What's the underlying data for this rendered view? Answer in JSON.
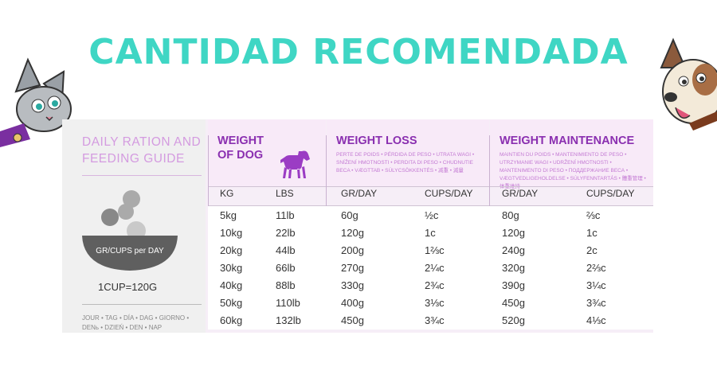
{
  "banner": {
    "title": "CANTIDAD RECOMENDADA"
  },
  "guide": {
    "title_line1": "DAILY RATION AND",
    "title_line2": "FEEDING GUIDE",
    "bowl_label": "GR/CUPS per DAY",
    "cup_equivalence": "1CUP=120G",
    "languages": "JOUR • TAG • DÍA • DAG • GIORNO • DENь • DZIEŃ • DEN • NAP"
  },
  "headers": {
    "weight": {
      "line1": "WEIGHT",
      "line2": "OF DOG"
    },
    "loss": {
      "title": "WEIGHT LOSS",
      "subtitle": "PERTE DE POIDS • PÉRDIDA DE PESO • UTRATA WAGI • SNÍŽENÍ HMOTNOSTI • PERDITA DI PESO • CHUDNUTIE BECA • VÆGTTAB • SÚLYCSÖKKENTÉS • 减重 • 減量"
    },
    "maintenance": {
      "title": "WEIGHT MAINTENANCE",
      "subtitle": "MAINTIEN DU POIDS • MANTENIMIENTO DE PESO • UTRZYMANIE WAGI • UDRŽENÍ HMOTNOSTI • MANTENIMENTO DI PESO • ПОДДЕРЖАНИЕ ВЕСА • VÆGTVEDLIGEHOLDELSE • SÚLYFENNTARTÁS • 體重管理 • 体重維持"
    }
  },
  "columns": {
    "kg": "KG",
    "lbs": "LBS",
    "loss_gr": "GR/DAY",
    "loss_cups": "CUPS/DAY",
    "maint_gr": "GR/DAY",
    "maint_cups": "CUPS/DAY"
  },
  "rows": [
    {
      "kg": "5kg",
      "lbs": "11lb",
      "loss_gr": "60g",
      "loss_cups": "½c",
      "maint_gr": "80g",
      "maint_cups": "⅔c"
    },
    {
      "kg": "10kg",
      "lbs": "22lb",
      "loss_gr": "120g",
      "loss_cups": "1c",
      "maint_gr": "120g",
      "maint_cups": "1c"
    },
    {
      "kg": "20kg",
      "lbs": "44lb",
      "loss_gr": "200g",
      "loss_cups": "1⅔c",
      "maint_gr": "240g",
      "maint_cups": "2c"
    },
    {
      "kg": "30kg",
      "lbs": "66lb",
      "loss_gr": "270g",
      "loss_cups": "2¼c",
      "maint_gr": "320g",
      "maint_cups": "2⅔c"
    },
    {
      "kg": "40kg",
      "lbs": "88lb",
      "loss_gr": "330g",
      "loss_cups": "2¾c",
      "maint_gr": "390g",
      "maint_cups": "3¼c"
    },
    {
      "kg": "50kg",
      "lbs": "110lb",
      "loss_gr": "400g",
      "loss_cups": "3⅓c",
      "maint_gr": "450g",
      "maint_cups": "3¾c"
    },
    {
      "kg": "60kg",
      "lbs": "132lb",
      "loss_gr": "450g",
      "loss_cups": "3¾c",
      "maint_gr": "520g",
      "maint_cups": "4⅓c"
    }
  ],
  "colors": {
    "banner": "#3fd6c4",
    "accent": "#8a2fb0",
    "light_accent": "#d49be0"
  }
}
